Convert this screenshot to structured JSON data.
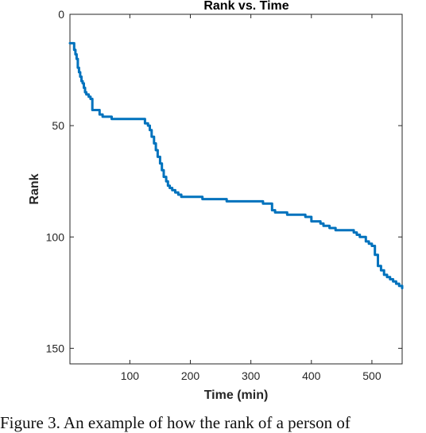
{
  "chart_data": {
    "type": "line",
    "title": "Rank vs. Time",
    "xlabel": "Time (min)",
    "ylabel": "Rank",
    "xlim": [
      1,
      550
    ],
    "ylim": [
      0,
      157
    ],
    "y_reversed": true,
    "x_ticks": [
      100,
      200,
      300,
      400,
      500
    ],
    "y_ticks": [
      0,
      50,
      100,
      150
    ],
    "grid": false,
    "line_color": "#0072BD",
    "series": [
      {
        "x": [
          1,
          5,
          8,
          10,
          12,
          14,
          16,
          18,
          20,
          22,
          24,
          26,
          28,
          30,
          32,
          35,
          38,
          40,
          45,
          50,
          55,
          60,
          65,
          70,
          80,
          90,
          100,
          110,
          120,
          125,
          130,
          133,
          136,
          140,
          143,
          146,
          150,
          153,
          156,
          160,
          163,
          166,
          170,
          175,
          180,
          185,
          190,
          195,
          200,
          210,
          220,
          230,
          240,
          250,
          260,
          270,
          280,
          290,
          300,
          310,
          320,
          325,
          330,
          335,
          340,
          350,
          360,
          370,
          380,
          385,
          390,
          400,
          410,
          415,
          420,
          430,
          440,
          450,
          460,
          470,
          475,
          480,
          490,
          495,
          500,
          505,
          510,
          515,
          520,
          525,
          530,
          535,
          540,
          545,
          550
        ],
        "y": [
          13,
          13,
          16,
          18,
          20,
          24,
          26,
          28,
          30,
          31,
          33,
          35,
          36,
          36,
          37,
          38,
          43,
          43,
          43,
          45,
          46,
          46,
          46,
          47,
          47,
          47,
          47,
          47,
          47,
          49,
          50,
          52,
          55,
          58,
          61,
          64,
          67,
          70,
          73,
          75,
          77,
          78,
          79,
          80,
          81,
          82,
          82,
          82,
          82,
          82,
          83,
          83,
          83,
          83,
          84,
          84,
          84,
          84,
          84,
          84,
          85,
          85,
          85,
          88,
          89,
          89,
          90,
          90,
          90,
          90,
          91,
          93,
          93,
          94,
          95,
          96,
          97,
          97,
          97,
          98,
          99,
          100,
          102,
          103,
          104,
          108,
          113,
          115,
          117,
          118,
          119,
          120,
          121,
          122,
          123
        ]
      }
    ]
  },
  "caption": {
    "text": "Figure 3. An example of how the rank of a person of"
  }
}
